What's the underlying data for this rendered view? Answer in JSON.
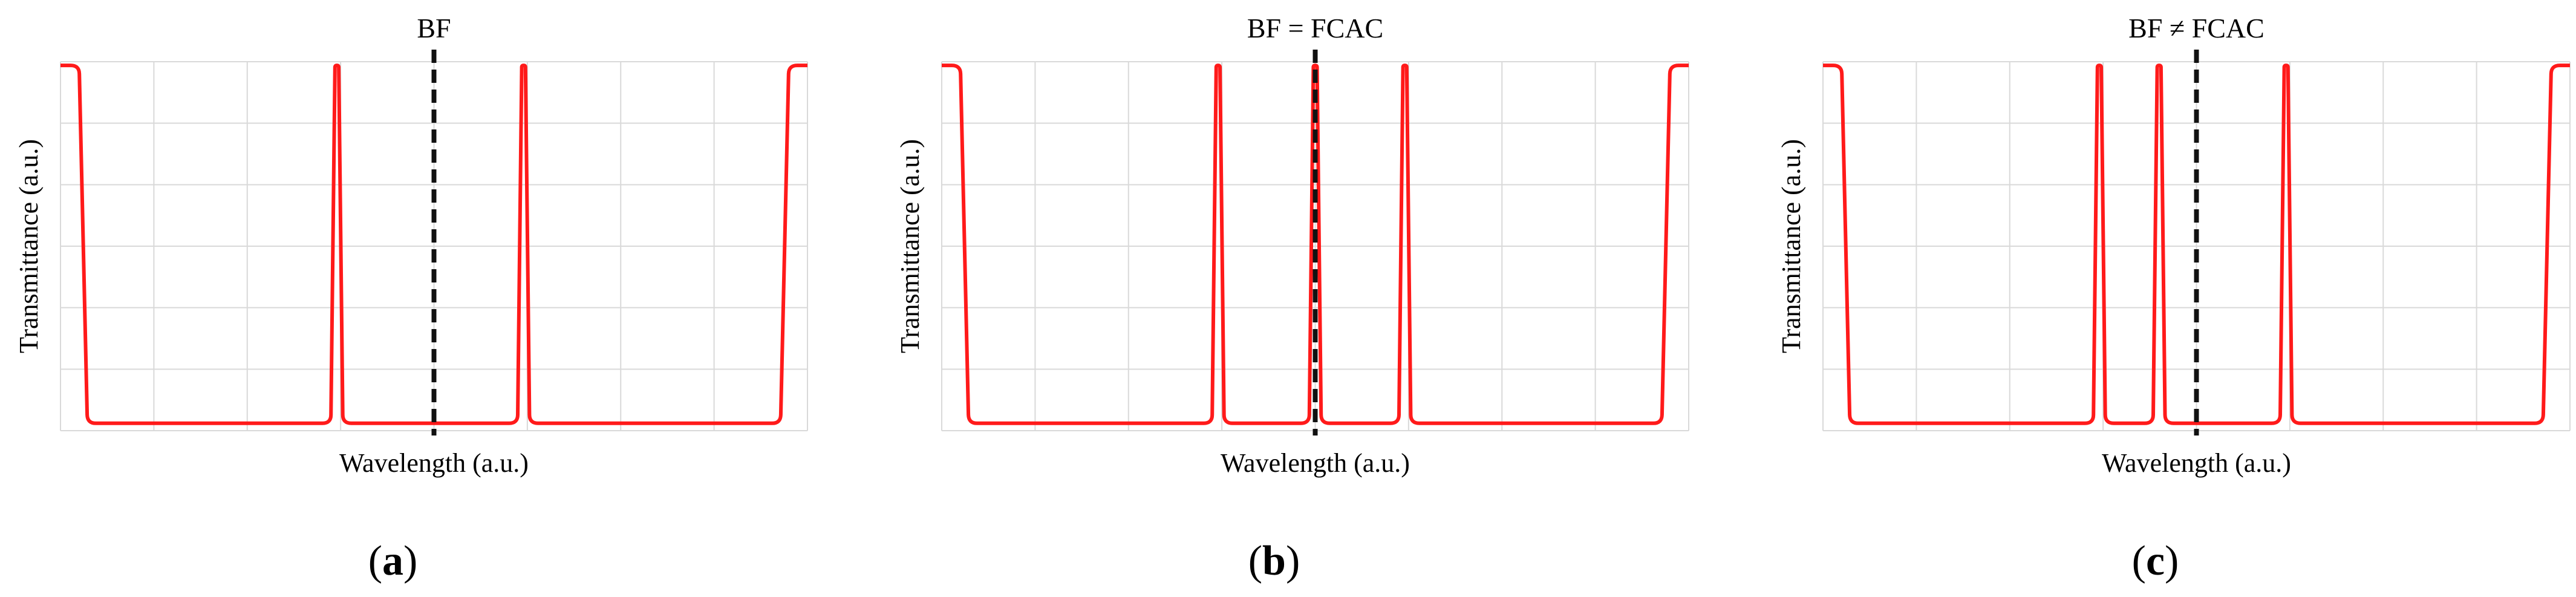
{
  "figure": {
    "background": "#ffffff",
    "curve_color": "#ff1a1a",
    "marker_color": "#111111",
    "grid_color": "#d9d9d9"
  },
  "chart_data": [
    {
      "type": "line",
      "panel": "a",
      "title": "BF",
      "xlabel": "Wavelength (a.u.)",
      "ylabel": "Transmittance (a.u.)",
      "caption_open": "(",
      "caption_letter": "a",
      "caption_close": ")",
      "xlim": [
        0,
        1
      ],
      "ylim": [
        0,
        1
      ],
      "grid": true,
      "x_gridlines": 8,
      "y_gridlines": 6,
      "series": [
        {
          "name": "transmittance",
          "passband_left_edge": 0.032,
          "passband_right_edge": 0.968,
          "peaks": [
            0.37,
            0.62
          ],
          "baseline": 0.02,
          "top": 0.99
        }
      ],
      "vertical_marker": {
        "x": 0.5,
        "style": "dashed"
      }
    },
    {
      "type": "line",
      "panel": "b",
      "title": "BF = FCAC",
      "xlabel": "Wavelength (a.u.)",
      "ylabel": "Transmittance (a.u.)",
      "caption_open": "(",
      "caption_letter": "b",
      "caption_close": ")",
      "xlim": [
        0,
        1
      ],
      "ylim": [
        0,
        1
      ],
      "grid": true,
      "x_gridlines": 8,
      "y_gridlines": 6,
      "series": [
        {
          "name": "transmittance",
          "passband_left_edge": 0.032,
          "passband_right_edge": 0.968,
          "peaks": [
            0.37,
            0.5,
            0.62
          ],
          "baseline": 0.02,
          "top": 0.99
        }
      ],
      "vertical_marker": {
        "x": 0.5,
        "style": "dashed"
      }
    },
    {
      "type": "line",
      "panel": "c",
      "title": "BF ≠ FCAC",
      "xlabel": "Wavelength (a.u.)",
      "ylabel": "Transmittance (a.u.)",
      "caption_open": "(",
      "caption_letter": "c",
      "caption_close": ")",
      "xlim": [
        0,
        1
      ],
      "ylim": [
        0,
        1
      ],
      "grid": true,
      "x_gridlines": 8,
      "y_gridlines": 6,
      "series": [
        {
          "name": "transmittance",
          "passband_left_edge": 0.032,
          "passband_right_edge": 0.968,
          "peaks": [
            0.37,
            0.45,
            0.62
          ],
          "baseline": 0.02,
          "top": 0.99
        }
      ],
      "vertical_marker": {
        "x": 0.5,
        "style": "dashed"
      }
    }
  ]
}
